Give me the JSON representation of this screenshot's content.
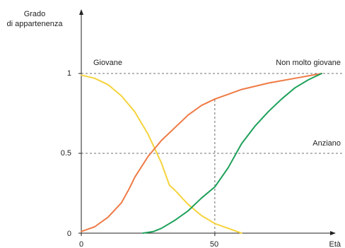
{
  "chart_data": {
    "type": "line",
    "title": "",
    "ylabel": [
      "Grado",
      "di appartenenza"
    ],
    "xlabel": "Età",
    "xlim": [
      0,
      91
    ],
    "ylim": [
      0,
      1.13
    ],
    "x_ticks": [
      0,
      50
    ],
    "x_tick_labels": [
      "0",
      "50"
    ],
    "y_ticks": [
      0,
      0.5,
      1
    ],
    "y_tick_labels": [
      "0",
      "0.5",
      "1"
    ],
    "grid": false,
    "reference_lines": [
      {
        "axis": "y",
        "value": 1,
        "style": "dashed"
      },
      {
        "axis": "y",
        "value": 0.5,
        "style": "dashed"
      },
      {
        "axis": "x",
        "value": 50,
        "from": 0,
        "to": 0.84,
        "style": "dashed"
      }
    ],
    "series": [
      {
        "name": "Giovane",
        "color": "#f5d33c",
        "points": [
          [
            0,
            0.99
          ],
          [
            5,
            0.97
          ],
          [
            10,
            0.93
          ],
          [
            15,
            0.86
          ],
          [
            20,
            0.76
          ],
          [
            25,
            0.62
          ],
          [
            30,
            0.44
          ],
          [
            33,
            0.3
          ],
          [
            35,
            0.27
          ],
          [
            40,
            0.18
          ],
          [
            45,
            0.11
          ],
          [
            50,
            0.06
          ],
          [
            55,
            0.03
          ],
          [
            60,
            0.0
          ]
        ]
      },
      {
        "name": "Non molto giovane",
        "color": "#ee7a45",
        "points": [
          [
            0,
            0.01
          ],
          [
            5,
            0.04
          ],
          [
            10,
            0.1
          ],
          [
            15,
            0.19
          ],
          [
            18,
            0.28
          ],
          [
            20,
            0.35
          ],
          [
            25,
            0.48
          ],
          [
            30,
            0.58
          ],
          [
            35,
            0.66
          ],
          [
            40,
            0.74
          ],
          [
            45,
            0.8
          ],
          [
            50,
            0.84
          ],
          [
            55,
            0.87
          ],
          [
            60,
            0.9
          ],
          [
            65,
            0.92
          ],
          [
            70,
            0.94
          ],
          [
            80,
            0.97
          ],
          [
            90,
            1.0
          ]
        ]
      },
      {
        "name": "Anziano",
        "color": "#1ea05a",
        "points": [
          [
            23,
            0.0
          ],
          [
            27,
            0.01
          ],
          [
            30,
            0.03
          ],
          [
            35,
            0.08
          ],
          [
            40,
            0.14
          ],
          [
            45,
            0.22
          ],
          [
            50,
            0.29
          ],
          [
            55,
            0.41
          ],
          [
            60,
            0.56
          ],
          [
            65,
            0.67
          ],
          [
            70,
            0.76
          ],
          [
            75,
            0.84
          ],
          [
            80,
            0.91
          ],
          [
            85,
            0.96
          ],
          [
            90,
            1.0
          ]
        ]
      }
    ],
    "annotations": [
      {
        "text": "Giovane",
        "series": "Giovane"
      },
      {
        "text": "Non molto giovane",
        "series": "Non molto giovane"
      },
      {
        "text": "Anziano",
        "series": "Anziano"
      }
    ]
  }
}
